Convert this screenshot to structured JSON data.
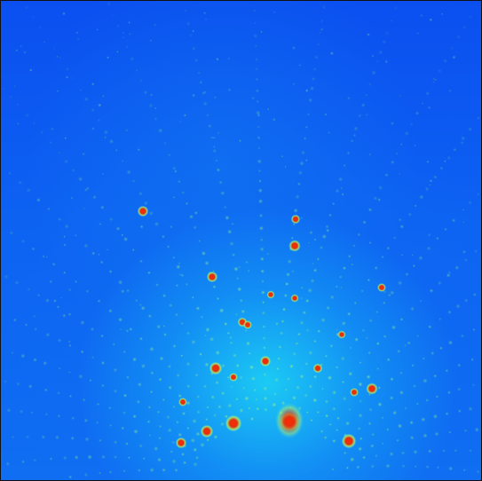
{
  "image": {
    "description_kind": "diffraction-pattern",
    "colors": {
      "background": "#0a52f2",
      "glow": "#1ed8f5",
      "spot_faint": "#52e0d8",
      "spot_mid": "#b8f060",
      "spot_hot": "#e03010",
      "spot_core": "#ff2a00"
    }
  }
}
